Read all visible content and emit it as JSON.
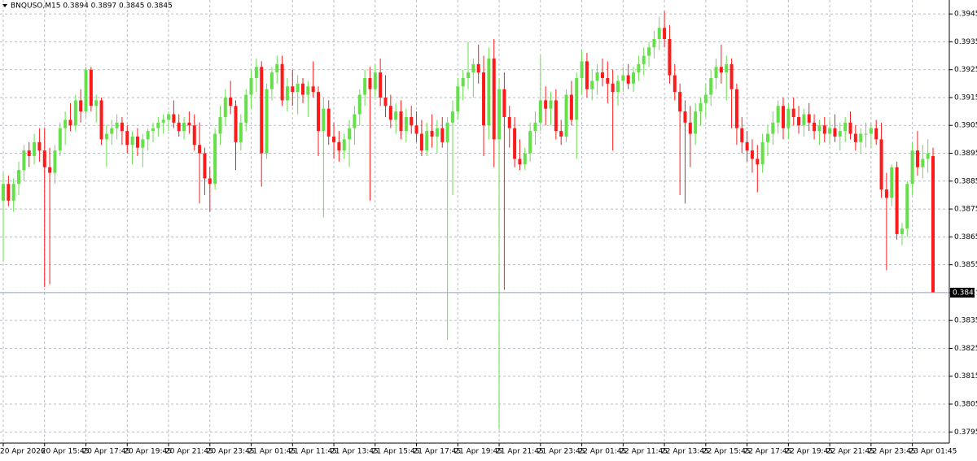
{
  "chart_data": {
    "type": "candlestick",
    "title": "BNQUSO,M15  0.3894 0.3897 0.3845 0.3845",
    "up_color": "#66e04a",
    "down_color": "#ff1a1a",
    "grid": true,
    "ylim": [
      0.3791,
      0.395
    ],
    "yticks": [
      0.3795,
      0.3805,
      0.3815,
      0.3825,
      0.3835,
      0.3845,
      0.3855,
      0.3865,
      0.3875,
      0.3885,
      0.3895,
      0.3905,
      0.3915,
      0.3925,
      0.3935,
      0.3945
    ],
    "categories": [
      "20 Apr 2026",
      null,
      null,
      null,
      null,
      null,
      null,
      null,
      "20 Apr 15:45",
      null,
      null,
      null,
      null,
      null,
      null,
      null,
      "20 Apr 17:45",
      null,
      null,
      null,
      null,
      null,
      null,
      null,
      "20 Apr 19:45",
      null,
      null,
      null,
      null,
      null,
      null,
      null,
      "20 Apr 21:45",
      null,
      null,
      null,
      null,
      null,
      null,
      null,
      "20 Apr 23:45",
      null,
      null,
      null,
      null,
      null,
      null,
      null,
      "21 Apr 01:45",
      null,
      null,
      null,
      null,
      null,
      null,
      null,
      "21 Apr 11:45",
      null,
      null,
      null,
      null,
      null,
      null,
      null,
      "21 Apr 13:45",
      null,
      null,
      null,
      null,
      null,
      null,
      null,
      "21 Apr 15:45",
      null,
      null,
      null,
      null,
      null,
      null,
      null,
      "21 Apr 17:45",
      null,
      null,
      null,
      null,
      null,
      null,
      null,
      "21 Apr 19:45",
      null,
      null,
      null,
      null,
      null,
      null,
      null,
      "21 Apr 21:45",
      null,
      null,
      null,
      null,
      null,
      null,
      null,
      "21 Apr 23:45",
      null,
      null,
      null,
      null,
      null,
      null,
      null,
      "22 Apr 01:45",
      null,
      null,
      null,
      null,
      null,
      null,
      null,
      "22 Apr 11:45",
      null,
      null,
      null,
      null,
      null,
      null,
      null,
      "22 Apr 13:45",
      null,
      null,
      null,
      null,
      null,
      null,
      null,
      "22 Apr 15:45",
      null,
      null,
      null,
      null,
      null,
      null,
      null,
      "22 Apr 17:45",
      null,
      null,
      null,
      null,
      null,
      null,
      null,
      "22 Apr 19:45",
      null,
      null,
      null,
      null,
      null,
      null,
      null,
      "22 Apr 21:45",
      null,
      null,
      null,
      null,
      null,
      null,
      null,
      "22 Apr 23:45",
      null,
      null,
      null,
      null,
      null,
      null,
      null,
      "23 Apr 01:45",
      null,
      null,
      null,
      null
    ],
    "ohlc": [
      [
        0.3878,
        0.3888,
        0.3856,
        0.3884
      ],
      [
        0.3884,
        0.3887,
        0.3876,
        0.3878
      ],
      [
        0.3878,
        0.3886,
        0.3874,
        0.3884
      ],
      [
        0.3884,
        0.3892,
        0.388,
        0.3889
      ],
      [
        0.3889,
        0.3898,
        0.3885,
        0.3896
      ],
      [
        0.3896,
        0.3899,
        0.389,
        0.3894
      ],
      [
        0.3894,
        0.3902,
        0.3891,
        0.3899
      ],
      [
        0.3899,
        0.3904,
        0.3892,
        0.3896
      ],
      [
        0.3896,
        0.3904,
        0.3847,
        0.389
      ],
      [
        0.389,
        0.3897,
        0.3848,
        0.3888
      ],
      [
        0.3888,
        0.3898,
        0.3884,
        0.3896
      ],
      [
        0.3896,
        0.3906,
        0.3894,
        0.3904
      ],
      [
        0.3904,
        0.391,
        0.3898,
        0.3907
      ],
      [
        0.3907,
        0.3913,
        0.3903,
        0.3905
      ],
      [
        0.3905,
        0.3916,
        0.3903,
        0.3914
      ],
      [
        0.3914,
        0.3918,
        0.3906,
        0.391
      ],
      [
        0.391,
        0.3926,
        0.3908,
        0.3925
      ],
      [
        0.3925,
        0.3926,
        0.391,
        0.3912
      ],
      [
        0.3912,
        0.3916,
        0.3906,
        0.3914
      ],
      [
        0.3914,
        0.3915,
        0.3898,
        0.39
      ],
      [
        0.39,
        0.3905,
        0.389,
        0.3902
      ],
      [
        0.3902,
        0.3907,
        0.3898,
        0.3904
      ],
      [
        0.3904,
        0.3909,
        0.39,
        0.3906
      ],
      [
        0.3906,
        0.3908,
        0.3898,
        0.3903
      ],
      [
        0.3903,
        0.3905,
        0.3895,
        0.3898
      ],
      [
        0.3898,
        0.3903,
        0.3891,
        0.3901
      ],
      [
        0.3901,
        0.3904,
        0.3894,
        0.3897
      ],
      [
        0.3897,
        0.3902,
        0.389,
        0.39
      ],
      [
        0.39,
        0.3904,
        0.3896,
        0.3903
      ],
      [
        0.3903,
        0.3906,
        0.3899,
        0.3904
      ],
      [
        0.3904,
        0.3908,
        0.3901,
        0.3906
      ],
      [
        0.3906,
        0.3909,
        0.3902,
        0.3907
      ],
      [
        0.3907,
        0.391,
        0.3903,
        0.3909
      ],
      [
        0.3909,
        0.3914,
        0.3904,
        0.3906
      ],
      [
        0.3906,
        0.3909,
        0.3901,
        0.3903
      ],
      [
        0.3903,
        0.3908,
        0.39,
        0.3906
      ],
      [
        0.3906,
        0.391,
        0.3902,
        0.3905
      ],
      [
        0.3905,
        0.3909,
        0.3896,
        0.3898
      ],
      [
        0.3898,
        0.3906,
        0.3877,
        0.3895
      ],
      [
        0.3895,
        0.3897,
        0.388,
        0.3886
      ],
      [
        0.3886,
        0.389,
        0.3874,
        0.3884
      ],
      [
        0.3884,
        0.3904,
        0.3882,
        0.3902
      ],
      [
        0.3902,
        0.3912,
        0.3898,
        0.3908
      ],
      [
        0.3908,
        0.3918,
        0.3905,
        0.3915
      ],
      [
        0.3915,
        0.3921,
        0.3909,
        0.3912
      ],
      [
        0.3912,
        0.3914,
        0.3889,
        0.3899
      ],
      [
        0.3899,
        0.3909,
        0.3896,
        0.3906
      ],
      [
        0.3906,
        0.3918,
        0.3903,
        0.3916
      ],
      [
        0.3916,
        0.3925,
        0.3911,
        0.3922
      ],
      [
        0.3922,
        0.3929,
        0.3917,
        0.3926
      ],
      [
        0.3926,
        0.3928,
        0.3883,
        0.3895
      ],
      [
        0.3895,
        0.392,
        0.3893,
        0.3918
      ],
      [
        0.3918,
        0.3926,
        0.3914,
        0.3924
      ],
      [
        0.3924,
        0.393,
        0.392,
        0.3927
      ],
      [
        0.3927,
        0.393,
        0.3912,
        0.3914
      ],
      [
        0.3914,
        0.3922,
        0.391,
        0.3919
      ],
      [
        0.3919,
        0.3925,
        0.3912,
        0.3917
      ],
      [
        0.3917,
        0.3923,
        0.3909,
        0.392
      ],
      [
        0.392,
        0.3922,
        0.3913,
        0.3916
      ],
      [
        0.3916,
        0.3921,
        0.3908,
        0.3919
      ],
      [
        0.3919,
        0.3928,
        0.3915,
        0.3917
      ],
      [
        0.3917,
        0.3919,
        0.3894,
        0.3903
      ],
      [
        0.3903,
        0.3915,
        0.3872,
        0.3911
      ],
      [
        0.3911,
        0.3914,
        0.3898,
        0.3901
      ],
      [
        0.3901,
        0.3906,
        0.3893,
        0.3899
      ],
      [
        0.3899,
        0.3903,
        0.3892,
        0.3896
      ],
      [
        0.3896,
        0.3902,
        0.3893,
        0.39
      ],
      [
        0.39,
        0.3907,
        0.389,
        0.3904
      ],
      [
        0.3904,
        0.3912,
        0.3898,
        0.3909
      ],
      [
        0.3909,
        0.3918,
        0.3905,
        0.3916
      ],
      [
        0.3916,
        0.3925,
        0.3912,
        0.3922
      ],
      [
        0.3922,
        0.3926,
        0.3878,
        0.3918
      ],
      [
        0.3918,
        0.3927,
        0.3915,
        0.3924
      ],
      [
        0.3924,
        0.3929,
        0.3912,
        0.3915
      ],
      [
        0.3915,
        0.3923,
        0.3908,
        0.3912
      ],
      [
        0.3912,
        0.3916,
        0.3904,
        0.3907
      ],
      [
        0.3907,
        0.3913,
        0.3902,
        0.391
      ],
      [
        0.391,
        0.3914,
        0.39,
        0.3903
      ],
      [
        0.3903,
        0.3911,
        0.3899,
        0.3908
      ],
      [
        0.3908,
        0.3912,
        0.3902,
        0.3905
      ],
      [
        0.3905,
        0.391,
        0.3899,
        0.3902
      ],
      [
        0.3902,
        0.3907,
        0.3894,
        0.3896
      ],
      [
        0.3896,
        0.3906,
        0.3894,
        0.3903
      ],
      [
        0.3903,
        0.3909,
        0.3897,
        0.3901
      ],
      [
        0.3901,
        0.3907,
        0.3895,
        0.3904
      ],
      [
        0.3904,
        0.3908,
        0.3897,
        0.3899
      ],
      [
        0.3899,
        0.3908,
        0.3828,
        0.3906
      ],
      [
        0.3906,
        0.3914,
        0.388,
        0.391
      ],
      [
        0.391,
        0.3922,
        0.3907,
        0.3919
      ],
      [
        0.3919,
        0.3925,
        0.3914,
        0.3922
      ],
      [
        0.3922,
        0.3935,
        0.3918,
        0.3924
      ],
      [
        0.3924,
        0.3929,
        0.3915,
        0.3927
      ],
      [
        0.3927,
        0.3934,
        0.392,
        0.3924
      ],
      [
        0.3924,
        0.393,
        0.3894,
        0.3905
      ],
      [
        0.3905,
        0.3933,
        0.39,
        0.3929
      ],
      [
        0.3929,
        0.3936,
        0.389,
        0.39
      ],
      [
        0.39,
        0.3922,
        0.3796,
        0.3918
      ],
      [
        0.3918,
        0.3924,
        0.3846,
        0.3908
      ],
      [
        0.3908,
        0.3912,
        0.3897,
        0.3904
      ],
      [
        0.3904,
        0.3908,
        0.389,
        0.3893
      ],
      [
        0.3893,
        0.39,
        0.3889,
        0.3891
      ],
      [
        0.3891,
        0.3897,
        0.3889,
        0.3895
      ],
      [
        0.3895,
        0.3906,
        0.3892,
        0.3903
      ],
      [
        0.3903,
        0.391,
        0.3898,
        0.3906
      ],
      [
        0.3906,
        0.393,
        0.3903,
        0.3914
      ],
      [
        0.3914,
        0.3919,
        0.3905,
        0.3911
      ],
      [
        0.3911,
        0.3917,
        0.3905,
        0.3914
      ],
      [
        0.3914,
        0.3918,
        0.39,
        0.3903
      ],
      [
        0.3903,
        0.3907,
        0.3898,
        0.3901
      ],
      [
        0.3901,
        0.3918,
        0.3899,
        0.3916
      ],
      [
        0.3916,
        0.3921,
        0.3905,
        0.3907
      ],
      [
        0.3907,
        0.3924,
        0.3893,
        0.3922
      ],
      [
        0.3922,
        0.3932,
        0.3916,
        0.3928
      ],
      [
        0.3928,
        0.3931,
        0.3915,
        0.3918
      ],
      [
        0.3918,
        0.3925,
        0.3914,
        0.3921
      ],
      [
        0.3921,
        0.3927,
        0.3916,
        0.3924
      ],
      [
        0.3924,
        0.3929,
        0.3919,
        0.3922
      ],
      [
        0.3922,
        0.3928,
        0.3913,
        0.392
      ],
      [
        0.392,
        0.3925,
        0.3896,
        0.3917
      ],
      [
        0.3917,
        0.3923,
        0.3912,
        0.3921
      ],
      [
        0.3921,
        0.3926,
        0.3917,
        0.3923
      ],
      [
        0.3923,
        0.3927,
        0.3918,
        0.392
      ],
      [
        0.392,
        0.3926,
        0.3917,
        0.3924
      ],
      [
        0.3924,
        0.393,
        0.3921,
        0.3927
      ],
      [
        0.3927,
        0.3933,
        0.3923,
        0.393
      ],
      [
        0.393,
        0.3935,
        0.3926,
        0.3933
      ],
      [
        0.3933,
        0.3939,
        0.3929,
        0.3936
      ],
      [
        0.3936,
        0.3944,
        0.3932,
        0.394
      ],
      [
        0.394,
        0.3946,
        0.3933,
        0.3936
      ],
      [
        0.3936,
        0.3941,
        0.392,
        0.3923
      ],
      [
        0.3923,
        0.3927,
        0.3914,
        0.3917
      ],
      [
        0.3917,
        0.392,
        0.388,
        0.391
      ],
      [
        0.391,
        0.3914,
        0.3877,
        0.3906
      ],
      [
        0.3906,
        0.3912,
        0.389,
        0.3902
      ],
      [
        0.3902,
        0.3913,
        0.3898,
        0.391
      ],
      [
        0.391,
        0.3915,
        0.3905,
        0.3913
      ],
      [
        0.3913,
        0.392,
        0.3908,
        0.3916
      ],
      [
        0.3916,
        0.3925,
        0.3912,
        0.3922
      ],
      [
        0.3922,
        0.3929,
        0.3918,
        0.3926
      ],
      [
        0.3926,
        0.3934,
        0.392,
        0.3924
      ],
      [
        0.3924,
        0.393,
        0.3914,
        0.3927
      ],
      [
        0.3927,
        0.3929,
        0.3904,
        0.3918
      ],
      [
        0.3918,
        0.392,
        0.3898,
        0.3904
      ],
      [
        0.3904,
        0.3908,
        0.3895,
        0.3899
      ],
      [
        0.3899,
        0.3903,
        0.3892,
        0.3896
      ],
      [
        0.3896,
        0.39,
        0.3888,
        0.3893
      ],
      [
        0.3893,
        0.3898,
        0.3881,
        0.3891
      ],
      [
        0.3891,
        0.3902,
        0.3888,
        0.3899
      ],
      [
        0.3899,
        0.3905,
        0.3894,
        0.3902
      ],
      [
        0.3902,
        0.391,
        0.3898,
        0.3906
      ],
      [
        0.3906,
        0.3914,
        0.3902,
        0.3912
      ],
      [
        0.3912,
        0.3915,
        0.39,
        0.3904
      ],
      [
        0.3904,
        0.3913,
        0.39,
        0.3911
      ],
      [
        0.3911,
        0.3915,
        0.3905,
        0.3908
      ],
      [
        0.3908,
        0.3912,
        0.3902,
        0.3905
      ],
      [
        0.3905,
        0.3911,
        0.3901,
        0.3909
      ],
      [
        0.3909,
        0.3913,
        0.3903,
        0.3906
      ],
      [
        0.3906,
        0.3909,
        0.39,
        0.3903
      ],
      [
        0.3903,
        0.3907,
        0.3898,
        0.3905
      ],
      [
        0.3905,
        0.3908,
        0.3899,
        0.3902
      ],
      [
        0.3902,
        0.3907,
        0.3898,
        0.3904
      ],
      [
        0.3904,
        0.3909,
        0.3899,
        0.3901
      ],
      [
        0.3901,
        0.3906,
        0.3896,
        0.3903
      ],
      [
        0.3903,
        0.3908,
        0.3899,
        0.3906
      ],
      [
        0.3906,
        0.391,
        0.39,
        0.3902
      ],
      [
        0.3902,
        0.3905,
        0.3896,
        0.3899
      ],
      [
        0.3899,
        0.3904,
        0.3895,
        0.3902
      ],
      [
        0.3902,
        0.3906,
        0.3897,
        0.3902
      ],
      [
        0.3902,
        0.3906,
        0.3897,
        0.3904
      ],
      [
        0.3904,
        0.3907,
        0.3898,
        0.39
      ],
      [
        0.39,
        0.3906,
        0.3879,
        0.3882
      ],
      [
        0.3882,
        0.3888,
        0.3853,
        0.3879
      ],
      [
        0.3879,
        0.3891,
        0.3876,
        0.389
      ],
      [
        0.389,
        0.3892,
        0.3864,
        0.3866
      ],
      [
        0.3866,
        0.387,
        0.3862,
        0.3868
      ],
      [
        0.3868,
        0.3885,
        0.3865,
        0.3884
      ],
      [
        0.3884,
        0.3899,
        0.388,
        0.3896
      ],
      [
        0.3896,
        0.3903,
        0.3887,
        0.389
      ],
      [
        0.389,
        0.3898,
        0.3886,
        0.3893
      ],
      [
        0.3893,
        0.39,
        0.3888,
        0.3895
      ],
      [
        0.3894,
        0.3897,
        0.3845,
        0.3845
      ]
    ]
  }
}
